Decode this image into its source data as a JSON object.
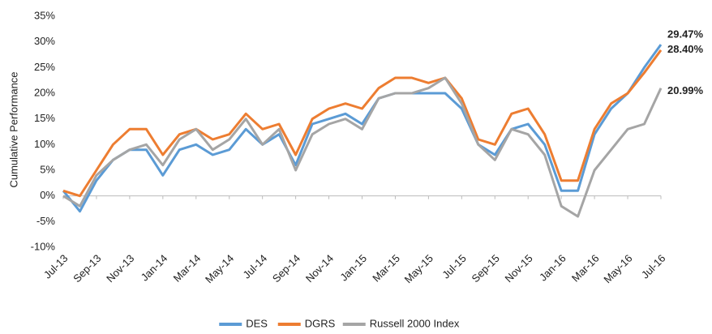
{
  "chart_data": {
    "type": "line",
    "y_label": "Cumulative Performance",
    "categories": [
      "Jul-13",
      null,
      "Sep-13",
      null,
      "Nov-13",
      null,
      "Jan-14",
      null,
      "Mar-14",
      null,
      "May-14",
      null,
      "Jul-14",
      null,
      "Sep-14",
      null,
      "Nov-14",
      null,
      "Jan-15",
      null,
      "Mar-15",
      null,
      "May-15",
      null,
      "Jul-15",
      null,
      "Sep-15",
      null,
      "Nov-15",
      null,
      "Jan-16",
      null,
      "Mar-16",
      null,
      "May-16",
      null,
      "Jul-16"
    ],
    "series": [
      {
        "name": "DES",
        "color": "#5b9bd5",
        "values": [
          1,
          -3,
          3,
          7,
          9,
          9,
          4,
          9,
          10,
          8,
          9,
          13,
          10,
          12,
          6,
          14,
          15,
          16,
          14,
          19,
          20,
          20,
          20,
          20,
          17,
          10,
          8,
          13,
          14,
          10,
          1,
          1,
          12,
          17,
          20,
          25,
          29.47
        ],
        "value_labels": [
          null,
          null,
          null,
          null,
          null,
          null,
          null,
          null,
          null,
          null,
          null,
          null,
          null,
          null,
          null,
          null,
          null,
          null,
          null,
          null,
          null,
          null,
          null,
          null,
          null,
          null,
          null,
          null,
          null,
          null,
          null,
          null,
          null,
          null,
          null,
          null,
          "29.47%"
        ]
      },
      {
        "name": "DGRS",
        "color": "#ed7d31",
        "values": [
          1,
          0,
          5,
          10,
          13,
          13,
          8,
          12,
          13,
          11,
          12,
          16,
          13,
          14,
          8,
          15,
          17,
          18,
          17,
          21,
          23,
          23,
          22,
          23,
          19,
          11,
          10,
          16,
          17,
          12,
          3,
          3,
          13,
          18,
          20,
          24,
          28.4
        ],
        "value_labels": [
          null,
          null,
          null,
          null,
          null,
          null,
          null,
          null,
          null,
          null,
          null,
          null,
          null,
          null,
          null,
          null,
          null,
          null,
          null,
          null,
          null,
          null,
          null,
          null,
          null,
          null,
          null,
          null,
          null,
          null,
          null,
          null,
          null,
          null,
          null,
          null,
          "28.40%"
        ]
      },
      {
        "name": "Russell 2000 Index",
        "color": "#a5a5a5",
        "values": [
          0,
          -2,
          4,
          7,
          9,
          10,
          6,
          11,
          13,
          9,
          11,
          15,
          10,
          13,
          5,
          12,
          14,
          15,
          13,
          19,
          20,
          20,
          21,
          23,
          18,
          10,
          7,
          13,
          12,
          8,
          -2,
          -4,
          5,
          9,
          13,
          14,
          20.99
        ],
        "value_labels": [
          null,
          null,
          null,
          null,
          null,
          null,
          null,
          null,
          null,
          null,
          null,
          null,
          null,
          null,
          null,
          null,
          null,
          null,
          null,
          null,
          null,
          null,
          null,
          null,
          null,
          null,
          null,
          null,
          null,
          null,
          null,
          null,
          null,
          null,
          null,
          null,
          "20.99%"
        ]
      }
    ],
    "ylim": [
      -10,
      35
    ],
    "yticks": [
      {
        "value": -10,
        "label": "-10%"
      },
      {
        "value": -5,
        "label": "-5%"
      },
      {
        "value": 0,
        "label": "0%"
      },
      {
        "value": 5,
        "label": "5%"
      },
      {
        "value": 10,
        "label": "10%"
      },
      {
        "value": 15,
        "label": "15%"
      },
      {
        "value": 20,
        "label": "20%"
      },
      {
        "value": 25,
        "label": "25%"
      },
      {
        "value": 30,
        "label": "30%"
      },
      {
        "value": 35,
        "label": "35%"
      }
    ],
    "grid": false
  }
}
